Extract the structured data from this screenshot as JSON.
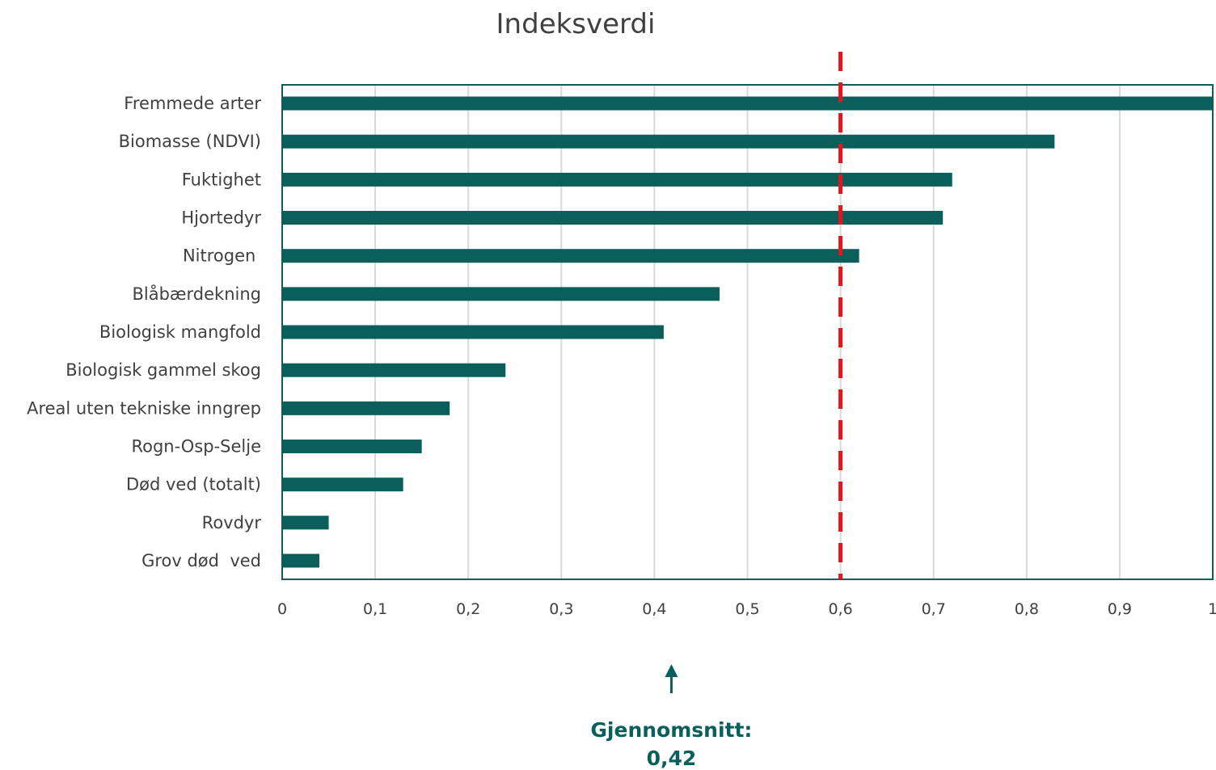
{
  "chart_data": {
    "type": "bar",
    "orientation": "horizontal",
    "title": "Indeksverdi",
    "categories": [
      "Fremmede arter",
      "Biomasse (NDVI)",
      "Fuktighet",
      "Hjortedyr",
      "Nitrogen ",
      "Blåbærdekning",
      "Biologisk mangfold",
      "Biologisk gammel skog",
      "Areal uten tekniske inngrep",
      "Rogn-Osp-Selje",
      "Død ved (totalt)",
      "Rovdyr",
      "Grov død  ved"
    ],
    "values": [
      1.0,
      0.83,
      0.72,
      0.71,
      0.62,
      0.47,
      0.41,
      0.24,
      0.18,
      0.15,
      0.13,
      0.05,
      0.04
    ],
    "xlim": [
      0,
      1
    ],
    "x_ticks": [
      0,
      0.1,
      0.2,
      0.3,
      0.4,
      0.5,
      0.6,
      0.7,
      0.8,
      0.9,
      1
    ],
    "x_tick_labels": [
      "0",
      "0,1",
      "0,2",
      "0,3",
      "0,4",
      "0,5",
      "0,6",
      "0,7",
      "0,8",
      "0,9",
      "1"
    ],
    "grid": "vertical",
    "reference_line": {
      "value": 0.6,
      "style": "dashed",
      "color": "#e8141c"
    },
    "average": {
      "value": 0.42,
      "label_line1": "Gjennomsnitt:",
      "label_line2": "0,42"
    },
    "colors": {
      "bar": "#0b5f5a",
      "frame": "#0b5f5a",
      "grid": "#d9d9d9",
      "text": "#404040",
      "annotation": "#0b5f5a"
    }
  }
}
